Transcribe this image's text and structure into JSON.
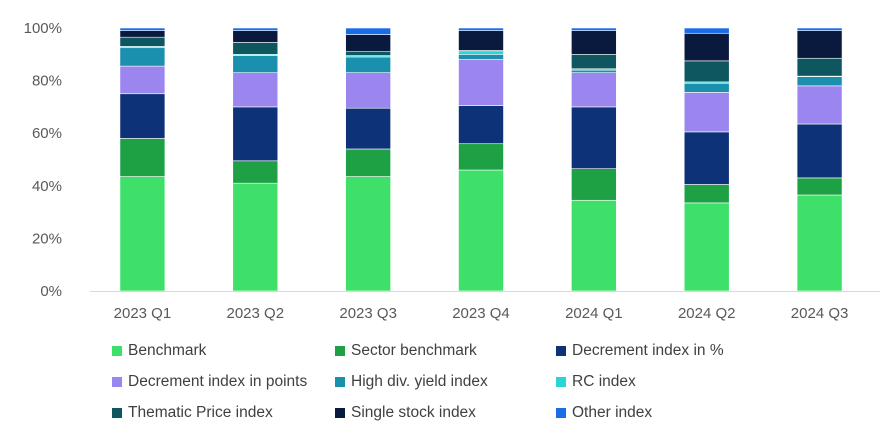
{
  "chart_data": {
    "type": "bar",
    "stacked": true,
    "categories": [
      "2023 Q1",
      "2023 Q2",
      "2023 Q3",
      "2023 Q4",
      "2024 Q1",
      "2024 Q2",
      "2024 Q3"
    ],
    "ylim": [
      0,
      100
    ],
    "yticks": [
      "0%",
      "20%",
      "40%",
      "60%",
      "80%",
      "100%"
    ],
    "ytick_values": [
      0,
      20,
      40,
      60,
      80,
      100
    ],
    "legend_position": "bottom",
    "grid": false,
    "series": [
      {
        "name": "Benchmark",
        "color": "#3ee06a",
        "values": [
          43.5,
          41,
          43.5,
          46,
          34.5,
          33.5,
          36.5
        ]
      },
      {
        "name": "Sector benchmark",
        "color": "#1ea045",
        "values": [
          14.5,
          8.5,
          10.5,
          10,
          12,
          7,
          6.5
        ]
      },
      {
        "name": "Decrement index in %",
        "color": "#0e3278",
        "values": [
          17,
          20.5,
          15.5,
          14.5,
          23.5,
          20,
          20.5
        ]
      },
      {
        "name": "Decrement index in points",
        "color": "#9b85ee",
        "values": [
          10.5,
          13,
          13.5,
          17.5,
          13,
          15,
          14.5
        ]
      },
      {
        "name": "High div. yield index",
        "color": "#1a8fae",
        "values": [
          7,
          6.5,
          6,
          2,
          1,
          3.5,
          3.5
        ]
      },
      {
        "name": "RC index",
        "color": "#29d6d6",
        "values": [
          0.5,
          0.5,
          0.5,
          1,
          0.5,
          0.5,
          0.2
        ]
      },
      {
        "name": "Thematic Price index",
        "color": "#0e5660",
        "values": [
          3.5,
          4.5,
          1.5,
          0.5,
          5.5,
          8,
          6.8
        ]
      },
      {
        "name": "Single stock index",
        "color": "#0a1a3e",
        "values": [
          2.5,
          4.5,
          6.5,
          7.5,
          9,
          10.5,
          10.5
        ]
      },
      {
        "name": "Other index",
        "color": "#1a6ce8",
        "values": [
          1,
          1,
          2.5,
          1,
          1,
          2,
          1
        ]
      }
    ]
  }
}
